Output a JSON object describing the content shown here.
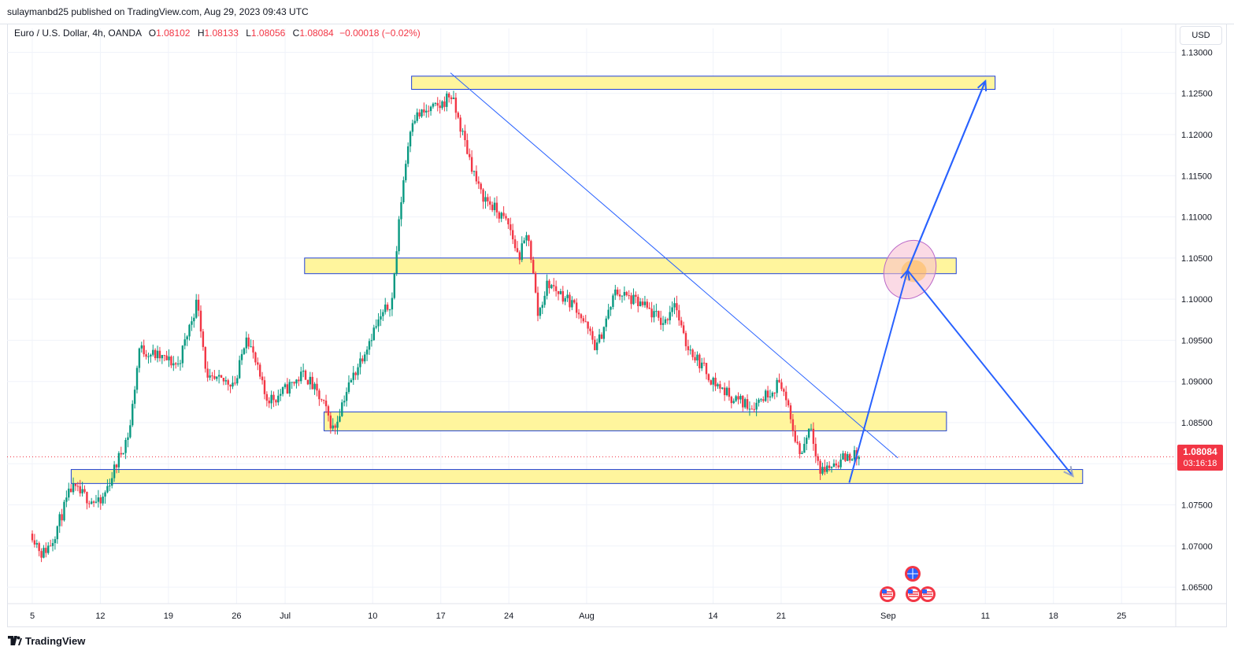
{
  "header": {
    "publish_line": "sulaymanbd25 published on TradingView.com, Aug 29, 2023 09:43 UTC"
  },
  "legend": {
    "symbol": "Euro / U.S. Dollar, 4h, OANDA",
    "open_label": "O",
    "open": "1.08102",
    "high_label": "H",
    "high": "1.08133",
    "low_label": "L",
    "low": "1.08056",
    "close_label": "C",
    "close": "1.08084",
    "change": "−0.00018 (−0.02%)"
  },
  "currency": "USD",
  "price_tag": {
    "price": "1.08084",
    "countdown": "03:16:18"
  },
  "footer": {
    "brand": "TradingView",
    "logo_icon": "tradingview-logo-icon"
  },
  "colors": {
    "up": "#089981",
    "down": "#f23645",
    "zone_fill": "#fff59d",
    "zone_border": "#1e40d6",
    "arrow": "#2962ff",
    "grid": "#f0f3fa"
  },
  "chart_data": {
    "type": "candlestick",
    "title": "",
    "ylim": [
      1.063,
      1.131
    ],
    "y_ticks": [
      "1.13000",
      "1.12500",
      "1.12000",
      "1.11500",
      "1.11000",
      "1.10500",
      "1.10000",
      "1.09500",
      "1.09000",
      "1.08500",
      "1.08000",
      "1.07500",
      "1.07000",
      "1.06500"
    ],
    "x_ticks": [
      "5",
      "12",
      "19",
      "26",
      "Jul",
      "10",
      "17",
      "24",
      "Aug",
      "14",
      "21",
      "Sep",
      "11",
      "18",
      "25"
    ],
    "last_price": 1.08084,
    "price_path": [
      {
        "date": "Jun 5",
        "price": 1.0715
      },
      {
        "date": "Jun 6",
        "price": 1.069
      },
      {
        "date": "Jun 7",
        "price": 1.0705
      },
      {
        "date": "Jun 9",
        "price": 1.077
      },
      {
        "date": "Jun 12",
        "price": 1.075
      },
      {
        "date": "Jun 14",
        "price": 1.081
      },
      {
        "date": "Jun 15",
        "price": 1.084
      },
      {
        "date": "Jun 16",
        "price": 1.094
      },
      {
        "date": "Jun 20",
        "price": 1.092
      },
      {
        "date": "Jun 22",
        "price": 1.1
      },
      {
        "date": "Jun 23",
        "price": 1.09
      },
      {
        "date": "Jun 26",
        "price": 1.09
      },
      {
        "date": "Jun 27",
        "price": 1.096
      },
      {
        "date": "Jun 29",
        "price": 1.088
      },
      {
        "date": "Jun 30",
        "price": 1.088
      },
      {
        "date": "Jul 3",
        "price": 1.091
      },
      {
        "date": "Jul 5",
        "price": 1.087
      },
      {
        "date": "Jul 6",
        "price": 1.084
      },
      {
        "date": "Jul 7",
        "price": 1.088
      },
      {
        "date": "Jul 10",
        "price": 1.096
      },
      {
        "date": "Jul 12",
        "price": 1.1
      },
      {
        "date": "Jul 13",
        "price": 1.113
      },
      {
        "date": "Jul 14",
        "price": 1.122
      },
      {
        "date": "Jul 17",
        "price": 1.1235
      },
      {
        "date": "Jul 18",
        "price": 1.125
      },
      {
        "date": "Jul 19",
        "price": 1.121
      },
      {
        "date": "Jul 21",
        "price": 1.113
      },
      {
        "date": "Jul 24",
        "price": 1.109
      },
      {
        "date": "Jul 25",
        "price": 1.105
      },
      {
        "date": "Jul 26",
        "price": 1.108
      },
      {
        "date": "Jul 27",
        "price": 1.098
      },
      {
        "date": "Jul 28",
        "price": 1.102
      },
      {
        "date": "Jul 31",
        "price": 1.099
      },
      {
        "date": "Aug 2",
        "price": 1.094
      },
      {
        "date": "Aug 4",
        "price": 1.101
      },
      {
        "date": "Aug 7",
        "price": 1.099
      },
      {
        "date": "Aug 9",
        "price": 1.097
      },
      {
        "date": "Aug 10",
        "price": 1.1
      },
      {
        "date": "Aug 11",
        "price": 1.095
      },
      {
        "date": "Aug 14",
        "price": 1.09
      },
      {
        "date": "Aug 16",
        "price": 1.088
      },
      {
        "date": "Aug 18",
        "price": 1.087
      },
      {
        "date": "Aug 21",
        "price": 1.09
      },
      {
        "date": "Aug 22",
        "price": 1.085
      },
      {
        "date": "Aug 23",
        "price": 1.081
      },
      {
        "date": "Aug 24",
        "price": 1.085
      },
      {
        "date": "Aug 25",
        "price": 1.079
      },
      {
        "date": "Aug 28",
        "price": 1.081
      },
      {
        "date": "Aug 29",
        "price": 1.0808
      }
    ],
    "zones": [
      {
        "from": "Jul 14",
        "to": "Sep 12",
        "top": 1.1271,
        "bottom": 1.1255
      },
      {
        "from": "Jul 3",
        "to": "Sep 8",
        "top": 1.105,
        "bottom": 1.1031
      },
      {
        "from": "Jul 5",
        "to": "Sep 7",
        "top": 1.0863,
        "bottom": 1.084
      },
      {
        "from": "Jun 9",
        "to": "Sep 21",
        "top": 1.0793,
        "bottom": 1.0776
      }
    ],
    "trendline": {
      "from": {
        "date": "Jul 18",
        "price": 1.1275
      },
      "to": {
        "date": "Sep 2",
        "price": 1.0807
      }
    },
    "projection": [
      {
        "date": "Aug 28",
        "price": 1.0777
      },
      {
        "date": "Sep 3",
        "price": 1.1035
      },
      {
        "date": "Sep 11",
        "price": 1.1265
      },
      {
        "date": "Sep 3",
        "price": 1.1035
      },
      {
        "date": "Sep 20",
        "price": 1.0785
      }
    ],
    "highlight_ellipse": {
      "date": "Sep 3",
      "price": 1.1036
    }
  }
}
